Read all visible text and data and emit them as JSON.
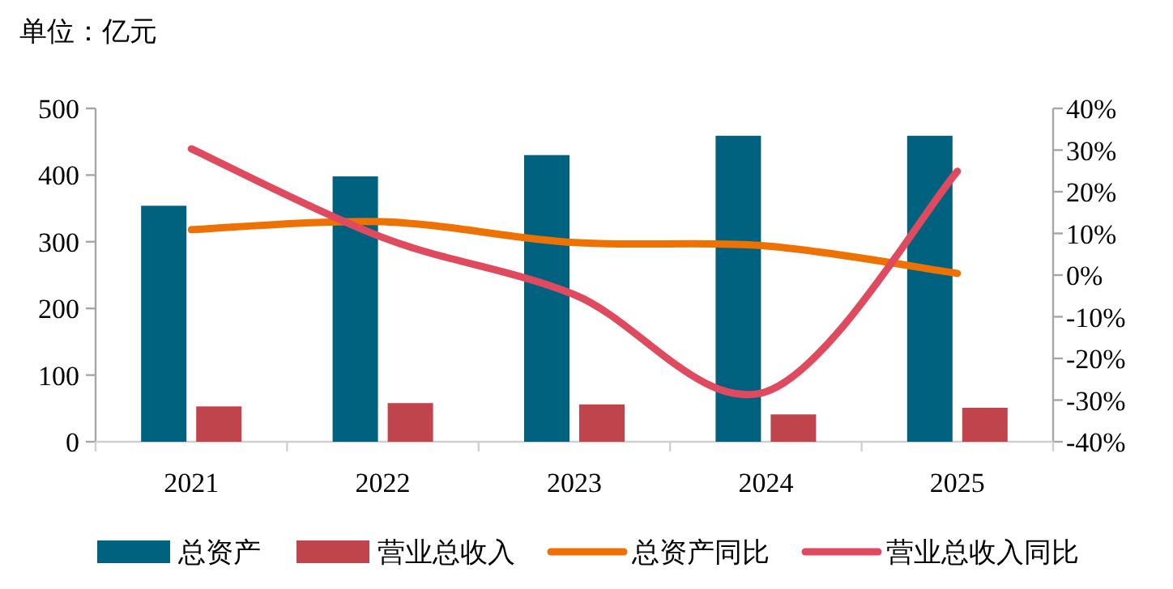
{
  "chart_data": {
    "type": "bar",
    "ylabel": "单位：亿元",
    "categories": [
      "2021",
      "2022",
      "2023",
      "2024",
      "2025"
    ],
    "series": [
      {
        "name": "总资产",
        "color": "#00627f",
        "values": [
          354,
          398,
          430,
          459,
          459
        ]
      },
      {
        "name": "营业总收入",
        "color": "#c0444c",
        "values": [
          53,
          58,
          56,
          41,
          51
        ]
      },
      {
        "name": "总资产同比",
        "type": "line",
        "axis": "y2",
        "color": "#ee7203",
        "values": [
          10.9,
          12.8,
          7.8,
          7,
          0.4
        ]
      },
      {
        "name": "营业总收入同比",
        "type": "line",
        "axis": "y2",
        "color": "#e04a5f",
        "values": [
          30.3,
          9,
          -4.7,
          -28,
          24.9
        ]
      }
    ],
    "ylim": [
      0,
      500
    ],
    "yticks": [
      0,
      100,
      200,
      300,
      400,
      500
    ],
    "y2lim": [
      -40,
      40
    ],
    "y2ticks": [
      {
        "value": -40,
        "label": "-40%"
      },
      {
        "value": -30,
        "label": "-30%"
      },
      {
        "value": -20,
        "label": "-20%"
      },
      {
        "value": -10,
        "label": "-10%"
      },
      {
        "value": 0,
        "label": "0%"
      },
      {
        "value": 10,
        "label": "10%"
      },
      {
        "value": 20,
        "label": "20%"
      },
      {
        "value": 30,
        "label": "30%"
      },
      {
        "value": 40,
        "label": "40%"
      }
    ],
    "legend": "bottom"
  }
}
